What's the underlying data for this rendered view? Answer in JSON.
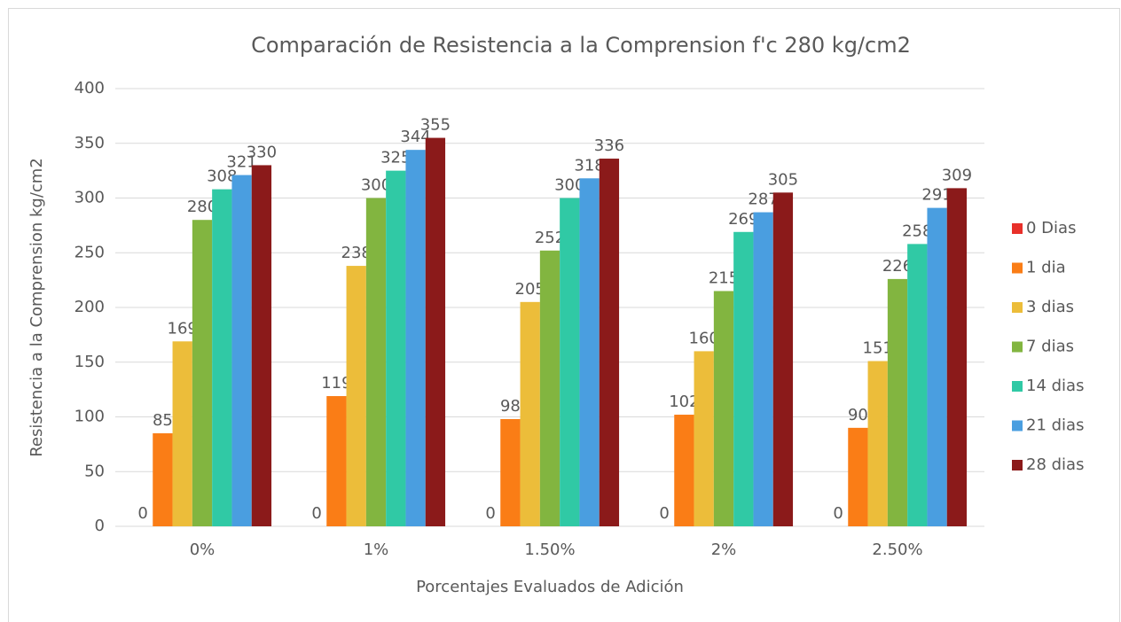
{
  "chart_data": {
    "type": "bar",
    "title": "Comparación de Resistencia a la Comprension f'c 280 kg/cm2",
    "x_label": "Porcentajes Evaluados de Adición",
    "y_label": "Resistencia a la Comprension kg/cm2",
    "categories": [
      "0%",
      "1%",
      "1.50%",
      "2%",
      "2.50%"
    ],
    "series": [
      {
        "name": "0 Dias",
        "color": "#e8302a",
        "values": [
          0,
          0,
          0,
          0,
          0
        ]
      },
      {
        "name": "1 dia",
        "color": "#fa7d16",
        "values": [
          85,
          119,
          98,
          102,
          90
        ]
      },
      {
        "name": "3 dias",
        "color": "#ecbd3a",
        "values": [
          169,
          238,
          205,
          160,
          151
        ]
      },
      {
        "name": "7 dias",
        "color": "#82b540",
        "values": [
          280,
          300,
          252,
          215,
          226
        ]
      },
      {
        "name": "14 dias",
        "color": "#30c9a5",
        "values": [
          308,
          325,
          300,
          269,
          258
        ]
      },
      {
        "name": "21 dias",
        "color": "#4a9ee0",
        "values": [
          321,
          344,
          318,
          287,
          291
        ]
      },
      {
        "name": "28 dias",
        "color": "#8b1a1a",
        "values": [
          330,
          355,
          336,
          305,
          309
        ]
      }
    ],
    "ylim": [
      0,
      400
    ],
    "yticks": [
      0,
      50,
      100,
      150,
      200,
      250,
      300,
      350,
      400
    ],
    "grid": true,
    "legend": "right"
  }
}
